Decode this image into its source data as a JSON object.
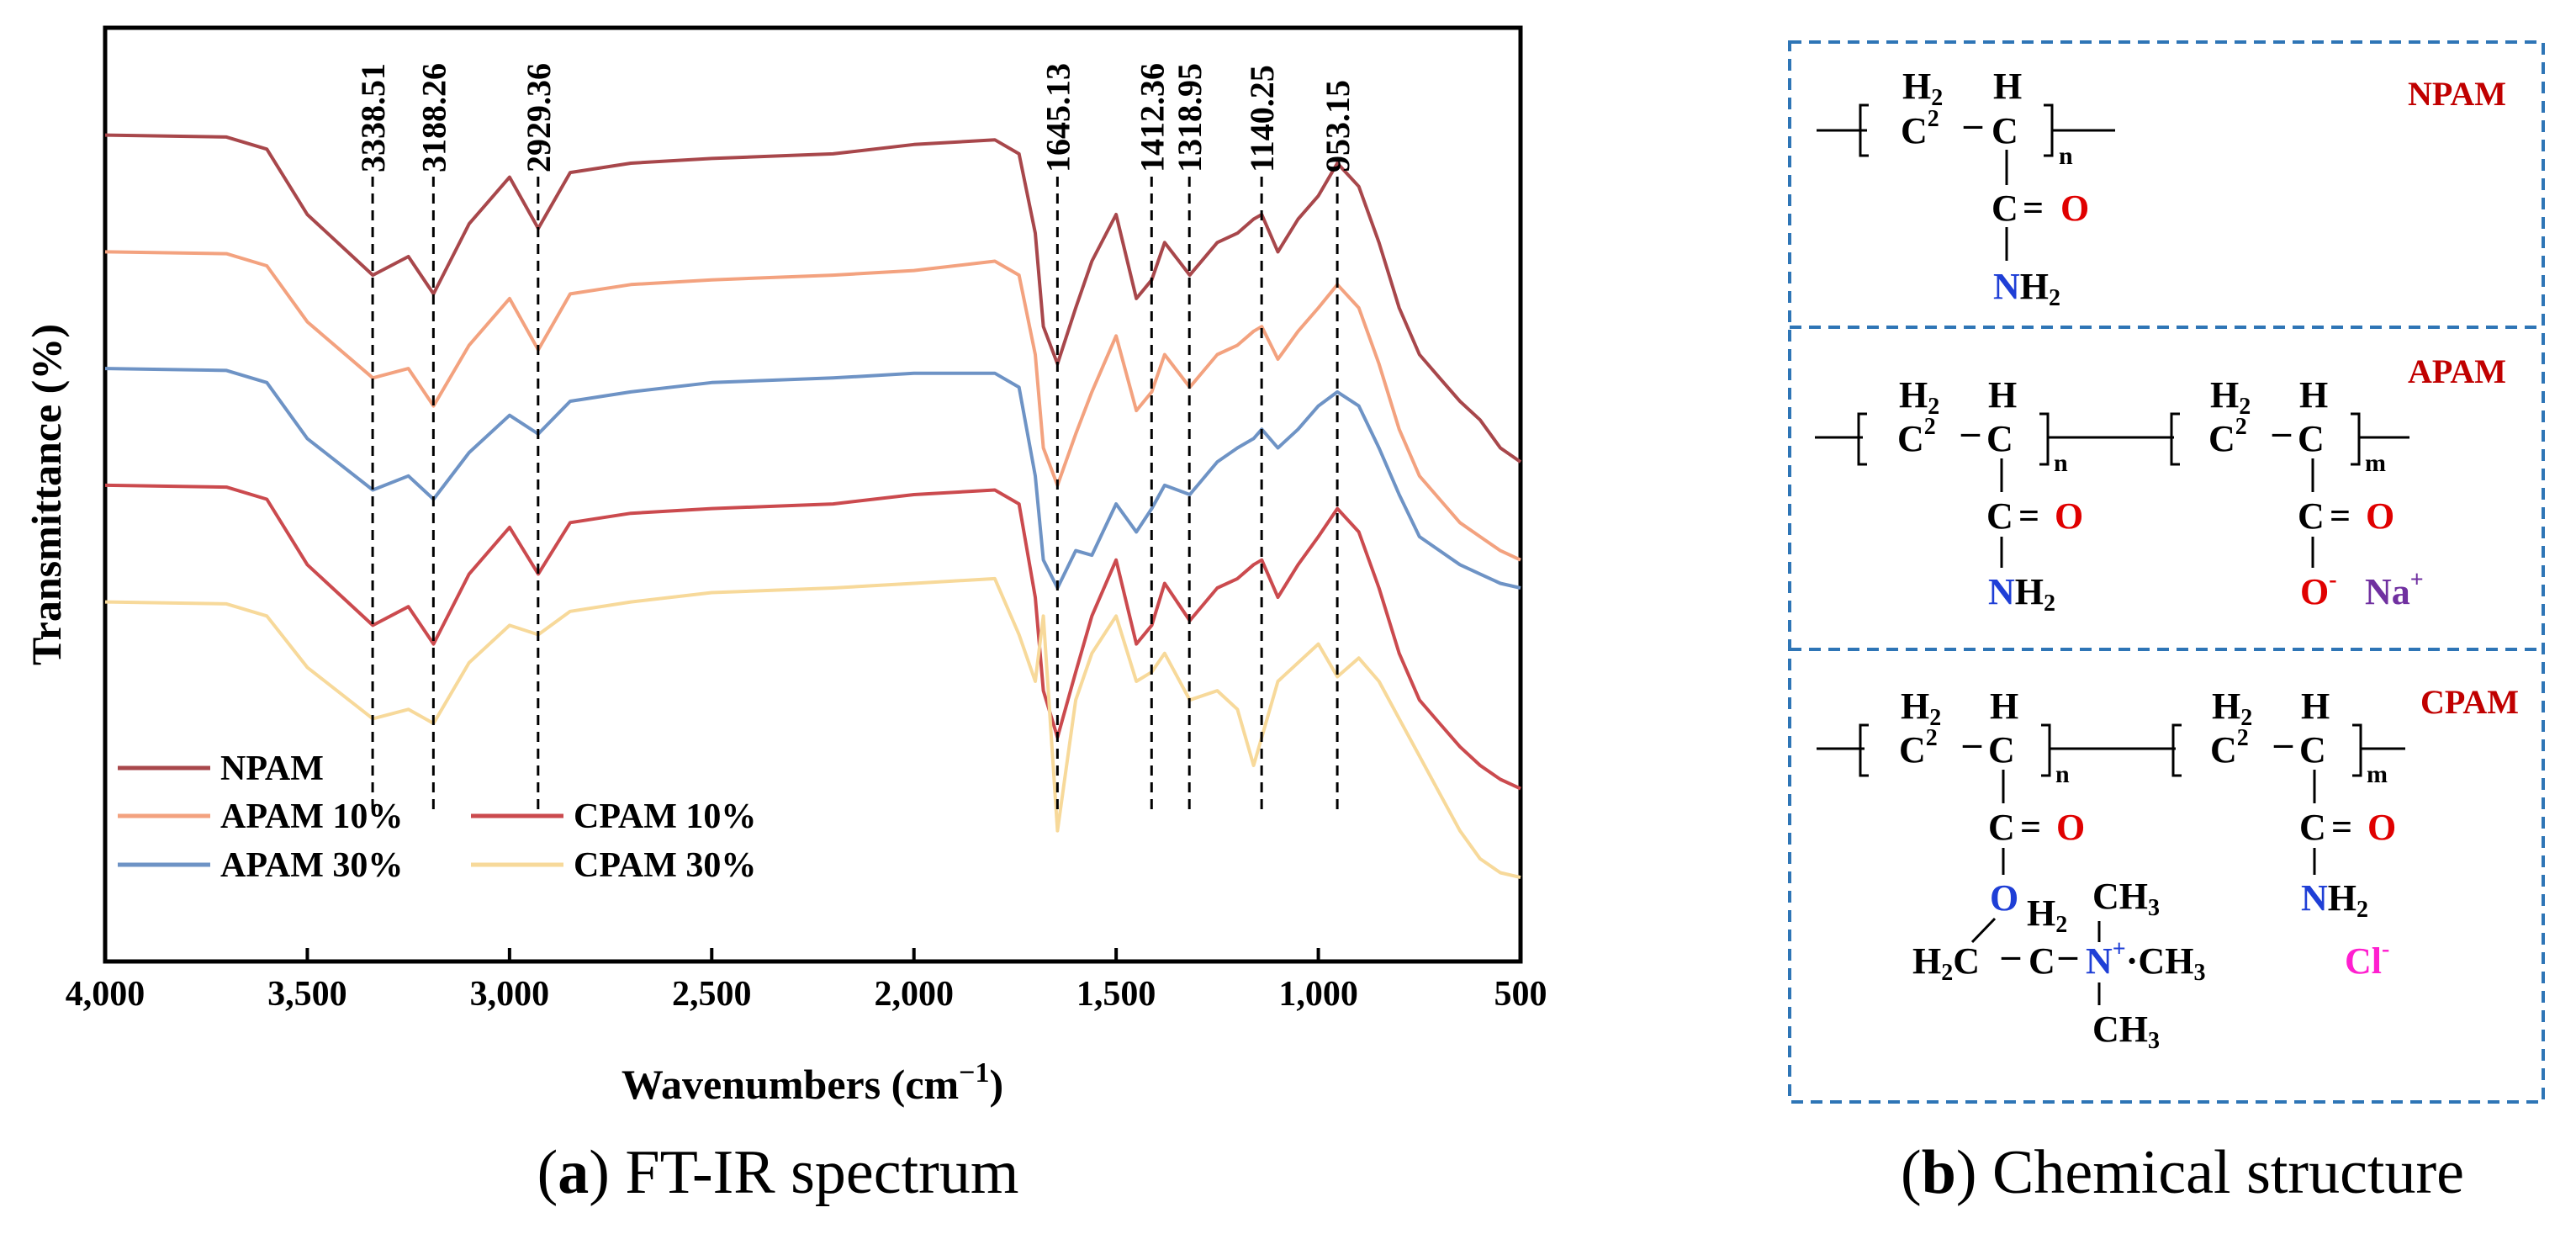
{
  "captions": {
    "a_letter": "a",
    "a_text": "FT-IR spectrum",
    "b_letter": "b",
    "b_text": "Chemical structure"
  },
  "chart_data": {
    "type": "line",
    "xlabel": "Wavenumbers (cm−1)",
    "ylabel": "Transmittance (%)",
    "xlim": [
      4000,
      500
    ],
    "x_reversed": true,
    "ylim": [
      0,
      100
    ],
    "ytick_labels": false,
    "xticks": [
      4000,
      3500,
      3000,
      2500,
      2000,
      1500,
      1000,
      500
    ],
    "xtick_labels": [
      "4,000",
      "3,500",
      "3,000",
      "2,500",
      "2,000",
      "1,500",
      "1,000",
      "500"
    ],
    "legend_position": "bottom-left",
    "x": [
      4000,
      3700,
      3600,
      3500,
      3338,
      3250,
      3188,
      3100,
      3000,
      2929,
      2850,
      2700,
      2500,
      2200,
      2000,
      1800,
      1740,
      1700,
      1680,
      1645,
      1600,
      1560,
      1500,
      1450,
      1412,
      1380,
      1318,
      1250,
      1200,
      1160,
      1140,
      1100,
      1050,
      1000,
      953,
      900,
      850,
      800,
      750,
      700,
      650,
      600,
      550,
      500
    ],
    "series": [
      {
        "name": "NPAM",
        "color": "#a8474b",
        "values": [
          88.5,
          88.3,
          87.0,
          80.0,
          73.5,
          75.5,
          71.5,
          79.0,
          84.0,
          78.5,
          84.5,
          85.5,
          86.0,
          86.5,
          87.5,
          88.0,
          86.5,
          78.0,
          68.0,
          64.0,
          70.0,
          75.0,
          80.0,
          71.0,
          73.0,
          77.0,
          73.5,
          77.0,
          78.0,
          79.5,
          80.0,
          76.0,
          79.5,
          82.0,
          85.5,
          83.0,
          77.0,
          70.0,
          65.0,
          62.5,
          60.0,
          58.0,
          55.0,
          53.5
        ]
      },
      {
        "name": "APAM 10%",
        "color": "#f3a27f",
        "values": [
          76.0,
          75.8,
          74.5,
          68.5,
          62.5,
          63.5,
          59.5,
          66.0,
          71.0,
          65.5,
          71.5,
          72.5,
          73.0,
          73.5,
          74.0,
          75.0,
          73.5,
          65.0,
          55.0,
          51.0,
          56.5,
          61.0,
          67.0,
          59.0,
          61.0,
          65.0,
          61.5,
          65.0,
          66.0,
          67.5,
          68.0,
          64.5,
          67.5,
          70.0,
          72.5,
          70.0,
          64.0,
          57.0,
          52.0,
          49.5,
          47.0,
          45.5,
          44.0,
          43.0
        ]
      },
      {
        "name": "APAM 30%",
        "color": "#6e93c5",
        "values": [
          63.5,
          63.3,
          62.0,
          56.0,
          50.5,
          52.0,
          49.5,
          54.5,
          58.5,
          56.5,
          60.0,
          61.0,
          62.0,
          62.5,
          63.0,
          63.0,
          61.5,
          52.0,
          43.0,
          40.0,
          44.0,
          43.5,
          49.0,
          46.0,
          48.5,
          51.0,
          50.0,
          53.5,
          55.0,
          56.0,
          57.0,
          55.0,
          57.0,
          59.5,
          61.0,
          59.5,
          55.0,
          50.0,
          45.5,
          44.0,
          42.5,
          41.5,
          40.5,
          40.0
        ]
      },
      {
        "name": "CPAM 10%",
        "color": "#cb4a4e",
        "values": [
          51.0,
          50.8,
          49.5,
          42.5,
          36.0,
          38.0,
          34.0,
          41.5,
          46.5,
          41.5,
          47.0,
          48.0,
          48.5,
          49.0,
          50.0,
          50.5,
          49.0,
          39.0,
          29.0,
          24.0,
          31.0,
          37.0,
          43.0,
          34.0,
          36.0,
          40.5,
          36.5,
          40.0,
          41.0,
          42.5,
          43.0,
          39.0,
          42.5,
          45.5,
          48.5,
          46.0,
          40.0,
          33.0,
          28.0,
          25.5,
          23.0,
          21.0,
          19.5,
          18.5
        ]
      },
      {
        "name": "CPAM 30%",
        "color": "#f7d99a",
        "values": [
          38.5,
          38.3,
          37.0,
          31.5,
          26.0,
          27.0,
          25.5,
          32.0,
          36.0,
          35.0,
          37.5,
          38.5,
          39.5,
          40.0,
          40.5,
          41.0,
          35.0,
          30.0,
          37.0,
          14.0,
          28.0,
          33.0,
          37.0,
          30.0,
          31.0,
          33.0,
          28.0,
          29.0,
          27.0,
          21.0,
          24.0,
          30.0,
          32.0,
          34.0,
          30.5,
          32.5,
          30.0,
          26.0,
          22.0,
          18.0,
          14.0,
          11.0,
          9.5,
          9.0
        ]
      }
    ],
    "annotations": [
      {
        "label": "3338.51",
        "x": 3338.51
      },
      {
        "label": "3188.26",
        "x": 3188.26
      },
      {
        "label": "2929.36",
        "x": 2929.36
      },
      {
        "label": "1645.13",
        "x": 1645.13
      },
      {
        "label": "1412.36",
        "x": 1412.36
      },
      {
        "label": "1318.95",
        "x": 1318.95
      },
      {
        "label": "1140.25",
        "x": 1140.25
      },
      {
        "label": "953.15",
        "x": 953.15
      }
    ]
  },
  "structures": {
    "npam": {
      "title": "NPAM",
      "h2": "H",
      "h2_sub": "2",
      "h": "H",
      "c": "C",
      "c2": "C",
      "sup2": "2",
      "dash": "–",
      "n": "n",
      "carbonyl_c": "C",
      "eq": "=",
      "o": "O",
      "n_atom": "N",
      "h_amide": "H",
      "h_amide_sub": "2"
    },
    "apam": {
      "title": "APAM",
      "n": "n",
      "m": "m",
      "o": "O",
      "o_minus": "O",
      "minus": "-",
      "na": "Na",
      "plus": "+",
      "n_atom": "N",
      "h_amide": "H",
      "h_amide_sub": "2"
    },
    "cpam": {
      "title": "CPAM",
      "n": "n",
      "m": "m",
      "o": "O",
      "ester_o": "O",
      "n_atom": "N",
      "n_plus": "+",
      "h_amide": "H",
      "h_amide_sub": "2",
      "ch3": "CH",
      "ch3_sub": "3",
      "dot": "·",
      "h2c": "H",
      "h2c_sub": "2",
      "h2c_c": "C",
      "chain_c": "C",
      "cl": "Cl",
      "cl_minus": "-"
    }
  }
}
